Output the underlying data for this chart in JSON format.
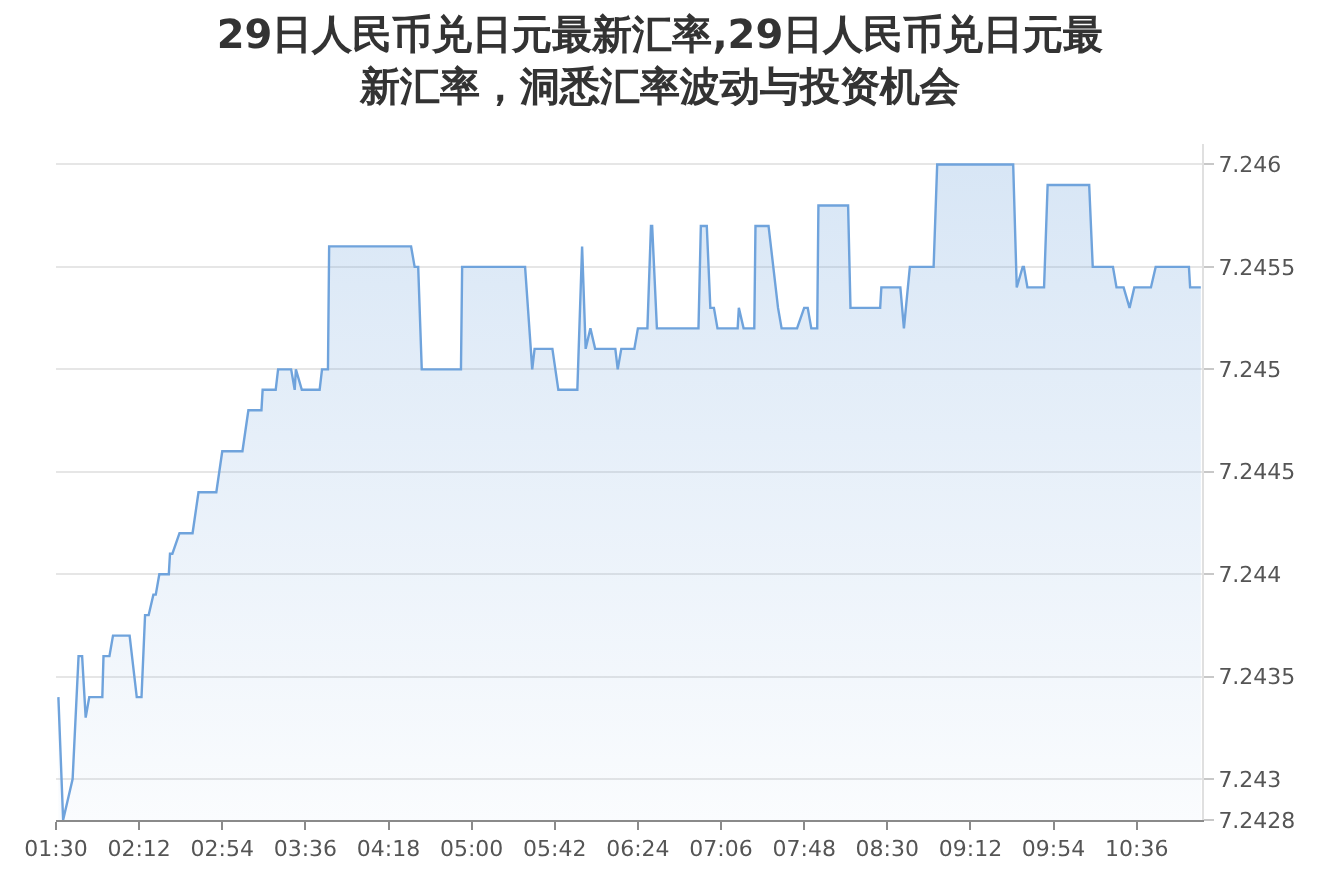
{
  "chart_data": {
    "type": "area",
    "title": "29日人民币兑日元最新汇率,29日人民币兑日元最新汇率，洞悉汇率波动与投资机会",
    "x": [
      1.52,
      1.56,
      1.64,
      1.69,
      1.72,
      1.75,
      1.78,
      1.89,
      1.9,
      1.95,
      1.98,
      2.12,
      2.18,
      2.22,
      2.25,
      2.28,
      2.32,
      2.34,
      2.37,
      2.45,
      2.46,
      2.48,
      2.54,
      2.65,
      2.7,
      2.85,
      2.9,
      3.07,
      3.12,
      3.23,
      3.24,
      3.35,
      3.37,
      3.48,
      3.51,
      3.52,
      3.57,
      3.72,
      3.74,
      3.79,
      3.8,
      4.49,
      4.52,
      4.55,
      4.58,
      4.91,
      4.92,
      5.45,
      5.51,
      5.53,
      5.68,
      5.73,
      5.89,
      5.93,
      5.96,
      6.0,
      6.04,
      6.21,
      6.23,
      6.26,
      6.37,
      6.4,
      6.48,
      6.51,
      6.52,
      6.56,
      6.91,
      6.93,
      6.98,
      7.01,
      7.04,
      7.07,
      7.24,
      7.25,
      7.29,
      7.38,
      7.39,
      7.5,
      7.58,
      7.61,
      7.74,
      7.8,
      7.83,
      7.86,
      7.91,
      7.92,
      8.17,
      8.19,
      8.44,
      8.45,
      8.61,
      8.64,
      8.69,
      8.89,
      8.92,
      9.56,
      9.59,
      9.64,
      9.65,
      9.68,
      9.82,
      9.85,
      10.2,
      10.23,
      10.4,
      10.43,
      10.49,
      10.54,
      10.58,
      10.72,
      10.76,
      11.04,
      11.05,
      11.14
    ],
    "series": [
      {
        "color": "#6fa3dc",
        "values": [
          7.2434,
          7.2428,
          7.243,
          7.2436,
          7.2436,
          7.2433,
          7.2434,
          7.2434,
          7.2436,
          7.2436,
          7.2437,
          7.2437,
          7.2434,
          7.2434,
          7.2438,
          7.2438,
          7.2439,
          7.2439,
          7.244,
          7.244,
          7.2441,
          7.2441,
          7.2442,
          7.2442,
          7.2444,
          7.2444,
          7.2446,
          7.2446,
          7.2448,
          7.2448,
          7.2449,
          7.2449,
          7.245,
          7.245,
          7.2449,
          7.245,
          7.2449,
          7.2449,
          7.245,
          7.245,
          7.2456,
          7.2456,
          7.2455,
          7.2455,
          7.245,
          7.245,
          7.2455,
          7.2455,
          7.245,
          7.2451,
          7.2451,
          7.2449,
          7.2449,
          7.2456,
          7.2451,
          7.2452,
          7.2451,
          7.2451,
          7.245,
          7.2451,
          7.2451,
          7.2452,
          7.2452,
          7.2457,
          7.2457,
          7.2452,
          7.2452,
          7.2457,
          7.2457,
          7.2453,
          7.2453,
          7.2452,
          7.2452,
          7.2453,
          7.2452,
          7.2452,
          7.2457,
          7.2457,
          7.2453,
          7.2452,
          7.2452,
          7.2453,
          7.2453,
          7.2452,
          7.2452,
          7.2458,
          7.2458,
          7.2453,
          7.2453,
          7.2454,
          7.2454,
          7.2452,
          7.2455,
          7.2455,
          7.246,
          7.246,
          7.2454,
          7.2455,
          7.2455,
          7.2454,
          7.2454,
          7.2459,
          7.2459,
          7.2455,
          7.2455,
          7.2454,
          7.2454,
          7.2453,
          7.2454,
          7.2454,
          7.2455,
          7.2455,
          7.2454,
          7.2454
        ]
      }
    ],
    "xlim": [
      1.5,
      11.15
    ],
    "xticks": [
      {
        "value": 1.5,
        "label": "01:30"
      },
      {
        "value": 2.2,
        "label": "02:12"
      },
      {
        "value": 2.9,
        "label": "02:54"
      },
      {
        "value": 3.6,
        "label": "03:36"
      },
      {
        "value": 4.3,
        "label": "04:18"
      },
      {
        "value": 5.0,
        "label": "05:00"
      },
      {
        "value": 5.7,
        "label": "05:42"
      },
      {
        "value": 6.4,
        "label": "06:24"
      },
      {
        "value": 7.1,
        "label": "07:06"
      },
      {
        "value": 7.8,
        "label": "07:48"
      },
      {
        "value": 8.5,
        "label": "08:30"
      },
      {
        "value": 9.2,
        "label": "09:12"
      },
      {
        "value": 9.9,
        "label": "09:54"
      },
      {
        "value": 10.6,
        "label": "10:36"
      }
    ],
    "ylim": [
      7.2428,
      7.2461
    ],
    "yticks": [
      7.2428,
      7.243,
      7.2435,
      7.244,
      7.2445,
      7.245,
      7.2455,
      7.246
    ],
    "grid": "y"
  }
}
